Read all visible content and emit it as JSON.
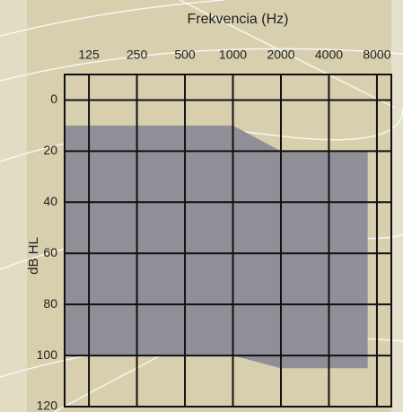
{
  "chart_data": {
    "type": "range-area",
    "x_label": "Frekvencia (Hz)",
    "y_label": "dB HL",
    "x": [
      88,
      1000,
      2000,
      7000
    ],
    "upper_values": [
      10,
      10,
      20,
      20
    ],
    "lower_values": [
      100,
      100,
      105,
      105
    ],
    "color": "#8f8f97",
    "x_scale": "log",
    "xlim": [
      88,
      9850
    ],
    "xticks": [
      125,
      250,
      500,
      1000,
      2000,
      4000,
      8000
    ],
    "ylim": [
      -10,
      120
    ],
    "yticks": [
      0,
      20,
      40,
      60,
      80,
      100,
      120
    ],
    "y_inverted": true,
    "grid": true
  }
}
